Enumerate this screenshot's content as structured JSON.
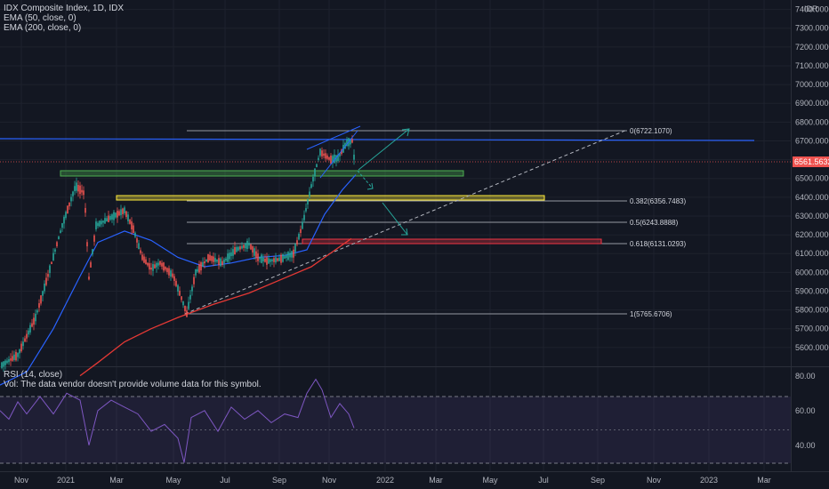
{
  "legend": {
    "symbol": "IDX Composite Index, 1D, IDX",
    "ema50": "EMA (50, close, 0)",
    "ema200": "EMA (200, close, 0)",
    "rsi": "RSI (14, close)",
    "vol": "Vol: The data vendor doesn't provide volume data for this symbol."
  },
  "axis": {
    "currency": "IDR",
    "price_ticks": [
      "7400.0000",
      "7300.0000",
      "7200.0000",
      "7100.0000",
      "7000.0000",
      "6900.0000",
      "6800.0000",
      "6700.0000",
      "6600.0000",
      "6500.0000",
      "6400.0000",
      "6300.0000",
      "6200.0000",
      "6100.0000",
      "6000.0000",
      "5900.0000",
      "5800.0000",
      "5700.0000",
      "5600.0000"
    ],
    "current_price_label": "6561.5632",
    "rsi_ticks": [
      "80.00",
      "60.00",
      "40.00"
    ],
    "time_ticks": [
      "Nov",
      "2021",
      "Mar",
      "May",
      "Jul",
      "Sep",
      "Nov",
      "2022",
      "Mar",
      "May",
      "Jul",
      "Sep",
      "Nov",
      "2023",
      "Mar"
    ]
  },
  "fib_labels": [
    "0(6722.1070)",
    "0.382(6356.7483)",
    "0.5(6243.8888)",
    "0.618(6131.0293)",
    "1(5765.6706)"
  ],
  "colors": {
    "background": "#131722",
    "up": "#26a69a",
    "down": "#ef5350",
    "ema50": "#2962ff",
    "ema200": "#e53935",
    "rsi": "#7e57c2",
    "price_tag": "#ef5350",
    "green_zone": "#4caf50",
    "yellow_zone": "#ffeb3b",
    "red_zone": "#f23645",
    "blue_line": "#2962ff"
  },
  "chart_data": {
    "type": "candlestick",
    "price_scale_min": 5500,
    "price_scale_max": 7450,
    "current_price": 6561.5632,
    "ema50_path": [
      [
        0,
        5400
      ],
      [
        30,
        5470
      ],
      [
        60,
        5700
      ],
      [
        90,
        5980
      ],
      [
        110,
        6160
      ],
      [
        140,
        6220
      ],
      [
        170,
        6170
      ],
      [
        200,
        6080
      ],
      [
        230,
        6030
      ],
      [
        260,
        6050
      ],
      [
        290,
        6080
      ],
      [
        320,
        6090
      ],
      [
        345,
        6120
      ],
      [
        365,
        6310
      ],
      [
        385,
        6440
      ],
      [
        400,
        6520
      ]
    ],
    "ema200_path": [
      [
        90,
        5450
      ],
      [
        110,
        5520
      ],
      [
        140,
        5630
      ],
      [
        170,
        5700
      ],
      [
        200,
        5760
      ],
      [
        240,
        5830
      ],
      [
        280,
        5890
      ],
      [
        320,
        5970
      ],
      [
        350,
        6030
      ],
      [
        380,
        6130
      ],
      [
        395,
        6180
      ]
    ],
    "rsi_scale_min": 25,
    "rsi_scale_max": 85,
    "rsi_path": [
      [
        0,
        60
      ],
      [
        10,
        55
      ],
      [
        20,
        65
      ],
      [
        30,
        58
      ],
      [
        45,
        68
      ],
      [
        60,
        58
      ],
      [
        75,
        70
      ],
      [
        90,
        66
      ],
      [
        100,
        40
      ],
      [
        110,
        60
      ],
      [
        125,
        66
      ],
      [
        140,
        62
      ],
      [
        155,
        58
      ],
      [
        170,
        48
      ],
      [
        185,
        52
      ],
      [
        200,
        44
      ],
      [
        207,
        30
      ],
      [
        215,
        56
      ],
      [
        230,
        60
      ],
      [
        245,
        48
      ],
      [
        260,
        62
      ],
      [
        275,
        55
      ],
      [
        290,
        60
      ],
      [
        305,
        53
      ],
      [
        320,
        58
      ],
      [
        335,
        56
      ],
      [
        345,
        70
      ],
      [
        355,
        78
      ],
      [
        362,
        72
      ],
      [
        372,
        56
      ],
      [
        382,
        64
      ],
      [
        392,
        58
      ],
      [
        398,
        50
      ]
    ],
    "fib_levels": [
      6722.107,
      6356.7483,
      6243.8888,
      6131.0293,
      5765.6706
    ]
  }
}
